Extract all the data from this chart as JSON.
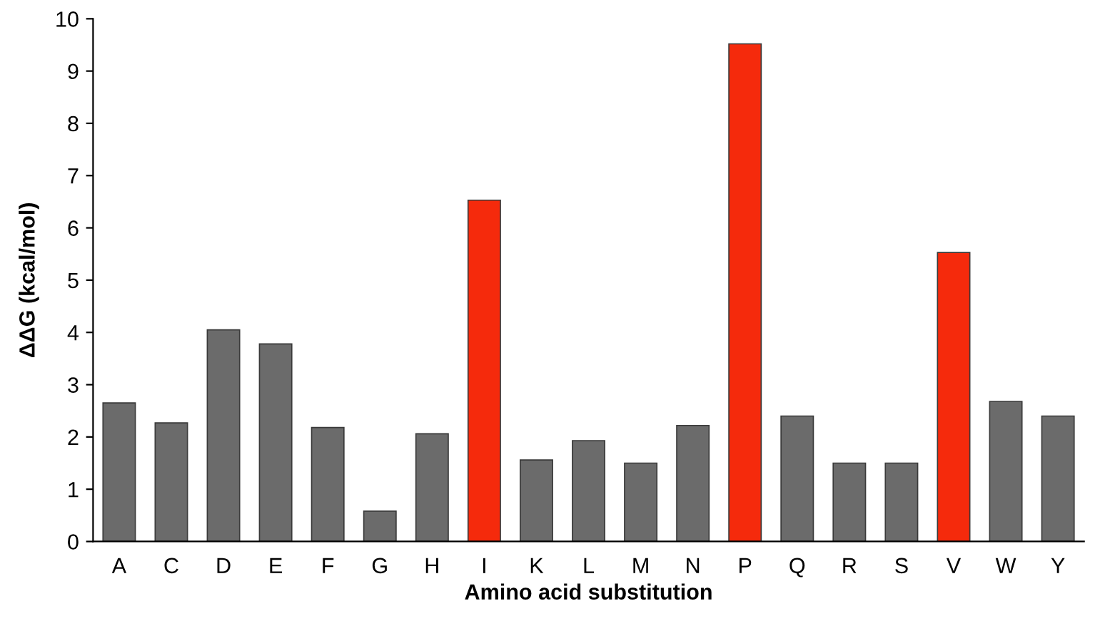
{
  "chart_data": {
    "type": "bar",
    "xlabel": "Amino acid substitution",
    "ylabel": "ΔΔG (kcal/mol)",
    "categories": [
      "A",
      "C",
      "D",
      "E",
      "F",
      "G",
      "H",
      "I",
      "K",
      "L",
      "M",
      "N",
      "P",
      "Q",
      "R",
      "S",
      "V",
      "W",
      "Y"
    ],
    "values": [
      2.65,
      2.27,
      4.05,
      3.78,
      2.18,
      0.58,
      2.06,
      6.53,
      1.56,
      1.93,
      1.5,
      2.22,
      9.52,
      2.4,
      1.5,
      1.5,
      5.53,
      2.68,
      2.4
    ],
    "colors": [
      "#6b6b6b",
      "#6b6b6b",
      "#6b6b6b",
      "#6b6b6b",
      "#6b6b6b",
      "#6b6b6b",
      "#6b6b6b",
      "#f52a0c",
      "#6b6b6b",
      "#6b6b6b",
      "#6b6b6b",
      "#6b6b6b",
      "#f52a0c",
      "#6b6b6b",
      "#6b6b6b",
      "#6b6b6b",
      "#f52a0c",
      "#6b6b6b",
      "#6b6b6b"
    ],
    "ylim": [
      0,
      10
    ],
    "yticks": [
      0,
      1,
      2,
      3,
      4,
      5,
      6,
      7,
      8,
      9,
      10
    ],
    "grid": false,
    "legend": false
  }
}
